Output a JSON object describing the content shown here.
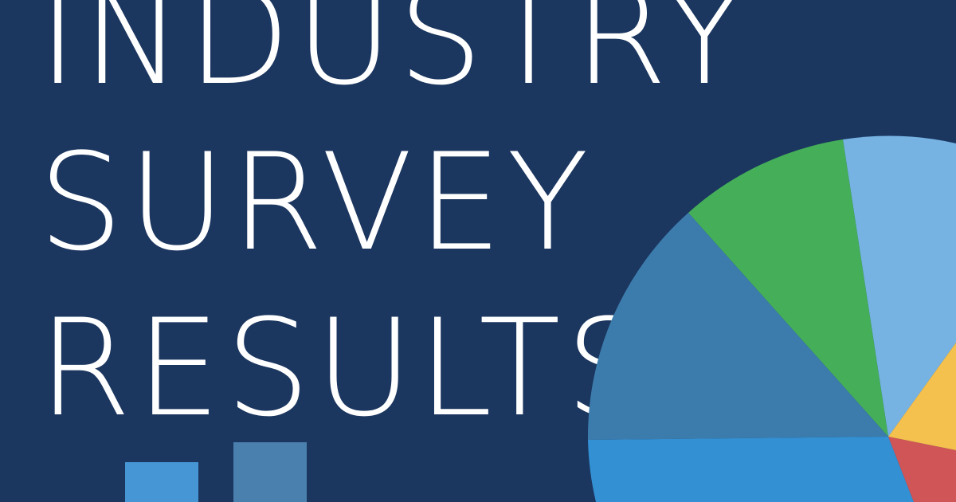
{
  "headline": {
    "lines": [
      "INDUSTRY",
      "SURVEY",
      "RESULTS"
    ]
  },
  "colors": {
    "background": "#1b365f",
    "text": "#ffffff",
    "slice_light_blue": "#76b3e3",
    "slice_green": "#45ae59",
    "slice_steel_blue": "#3c7cad",
    "slice_bright_blue": "#3290d3",
    "slice_red": "#d05556",
    "slice_yellow": "#f4c04e",
    "bar_left": "#4695d4",
    "bar_right": "#4a80ad"
  },
  "pie": {
    "slices": [
      {
        "name": "light-blue",
        "color_key": "slice_light_blue"
      },
      {
        "name": "green",
        "color_key": "slice_green"
      },
      {
        "name": "steel-blue",
        "color_key": "slice_steel_blue"
      },
      {
        "name": "bright-blue",
        "color_key": "slice_bright_blue"
      },
      {
        "name": "red",
        "color_key": "slice_red"
      },
      {
        "name": "yellow",
        "color_key": "slice_yellow"
      }
    ]
  },
  "bars": [
    {
      "name": "bar-left",
      "color_key": "bar_left"
    },
    {
      "name": "bar-right",
      "color_key": "bar_right"
    }
  ]
}
